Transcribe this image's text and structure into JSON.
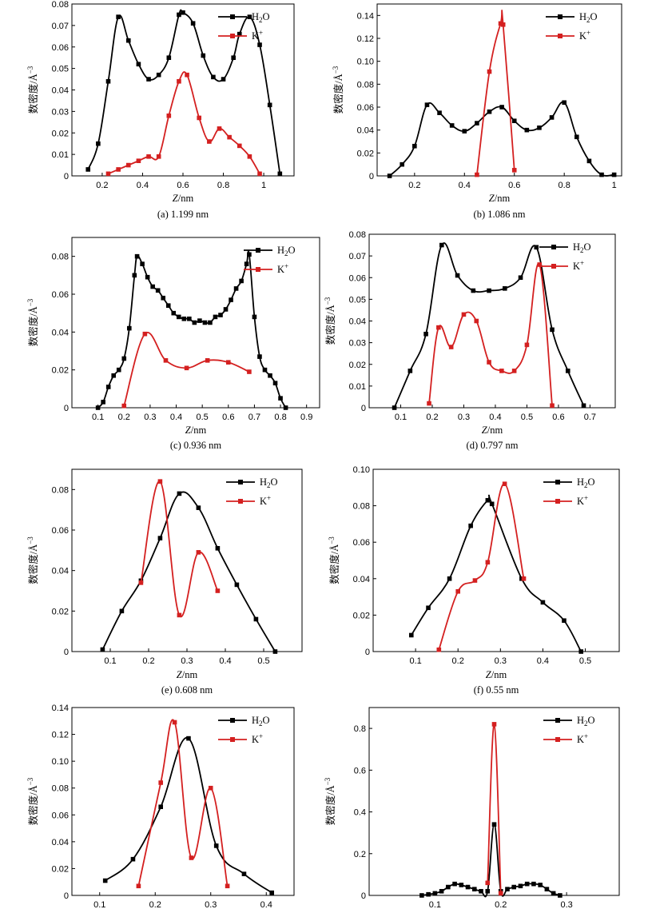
{
  "colors": {
    "h2o": "#000000",
    "k": "#d42020",
    "axis": "#000000"
  },
  "legend_labels": {
    "h2o_main": "H",
    "h2o_sub": "2",
    "h2o_end": "O",
    "k_main": "K",
    "k_sup": "+"
  },
  "ylabel": {
    "main": "数密度/Å",
    "sup": "−3"
  },
  "xlabel": {
    "italic": "Z",
    "rest": "/nm"
  },
  "chart_data": [
    {
      "id": "a",
      "type": "line",
      "caption": "(a) 1.199 nm",
      "xlim": [
        0.05,
        1.15
      ],
      "ylim": [
        0,
        0.08
      ],
      "xticks": [
        0.2,
        0.4,
        0.6,
        0.8,
        1.0
      ],
      "xtick_labels": [
        "0.2",
        "0.4",
        "0.6",
        "0.8",
        "1"
      ],
      "yticks": [
        0,
        0.01,
        0.02,
        0.03,
        0.04,
        0.05,
        0.06,
        0.07,
        0.08
      ],
      "ytick_labels": [
        "0",
        "0.01",
        "0.02",
        "0.03",
        "0.04",
        "0.05",
        "0.06",
        "0.07",
        "0.08"
      ],
      "show_xlabel": true,
      "legend_style": "line",
      "series": [
        {
          "name": "H2O",
          "x": [
            0.13,
            0.18,
            0.23,
            0.28,
            0.33,
            0.38,
            0.43,
            0.48,
            0.53,
            0.58,
            0.6,
            0.65,
            0.7,
            0.75,
            0.8,
            0.85,
            0.88,
            0.93,
            0.98,
            1.03,
            1.08
          ],
          "y": [
            0.003,
            0.015,
            0.044,
            0.074,
            0.063,
            0.052,
            0.045,
            0.047,
            0.055,
            0.075,
            0.076,
            0.071,
            0.056,
            0.046,
            0.045,
            0.055,
            0.066,
            0.074,
            0.061,
            0.033,
            0.001
          ]
        },
        {
          "name": "K+",
          "x": [
            0.23,
            0.28,
            0.33,
            0.38,
            0.43,
            0.48,
            0.53,
            0.58,
            0.62,
            0.68,
            0.73,
            0.78,
            0.83,
            0.88,
            0.93,
            0.98
          ],
          "y": [
            0.001,
            0.003,
            0.005,
            0.007,
            0.009,
            0.009,
            0.028,
            0.044,
            0.047,
            0.027,
            0.016,
            0.022,
            0.018,
            0.014,
            0.009,
            0.001
          ]
        }
      ]
    },
    {
      "id": "b",
      "type": "line",
      "caption": "(b) 1.086 nm",
      "xlim": [
        0.05,
        1.03
      ],
      "ylim": [
        0,
        0.15
      ],
      "xticks": [
        0.2,
        0.4,
        0.6,
        0.8,
        1.0
      ],
      "xtick_labels": [
        "0.2",
        "0.4",
        "0.6",
        "0.8",
        "1"
      ],
      "yticks": [
        0,
        0.02,
        0.04,
        0.06,
        0.08,
        0.1,
        0.12,
        0.14
      ],
      "ytick_labels": [
        "0",
        "0.02",
        "0.04",
        "0.06",
        "0.08",
        "0.10",
        "0.12",
        "0.14"
      ],
      "show_xlabel": true,
      "legend_style": "line",
      "series": [
        {
          "name": "H2O",
          "x": [
            0.1,
            0.15,
            0.2,
            0.25,
            0.3,
            0.35,
            0.4,
            0.45,
            0.5,
            0.55,
            0.6,
            0.65,
            0.7,
            0.75,
            0.8,
            0.85,
            0.9,
            0.95,
            1.0
          ],
          "y": [
            0.0,
            0.01,
            0.026,
            0.062,
            0.055,
            0.044,
            0.039,
            0.046,
            0.056,
            0.06,
            0.048,
            0.04,
            0.042,
            0.051,
            0.064,
            0.034,
            0.013,
            0.001,
            0.001
          ]
        },
        {
          "name": "K+",
          "x": [
            0.45,
            0.5,
            0.545,
            0.555,
            0.6
          ],
          "y": [
            0.001,
            0.091,
            0.133,
            0.132,
            0.005
          ]
        }
      ]
    },
    {
      "id": "c",
      "type": "line",
      "caption": "(c) 0.936 nm",
      "xlim": [
        0.0,
        0.95
      ],
      "ylim": [
        0,
        0.09
      ],
      "xticks": [
        0.1,
        0.2,
        0.3,
        0.4,
        0.5,
        0.6,
        0.7,
        0.8,
        0.9
      ],
      "xtick_labels": [
        "0.1",
        "0.2",
        "0.3",
        "0.4",
        "0.5",
        "0.6",
        "0.7",
        "0.8",
        "0.9"
      ],
      "yticks": [
        0,
        0.02,
        0.04,
        0.06,
        0.08
      ],
      "ytick_labels": [
        "0",
        "0.02",
        "0.04",
        "0.06",
        "0.08"
      ],
      "show_xlabel": true,
      "legend_style": "line",
      "series": [
        {
          "name": "H2O",
          "x": [
            0.1,
            0.12,
            0.14,
            0.16,
            0.18,
            0.2,
            0.22,
            0.24,
            0.25,
            0.27,
            0.29,
            0.31,
            0.33,
            0.35,
            0.37,
            0.39,
            0.41,
            0.43,
            0.45,
            0.47,
            0.49,
            0.51,
            0.53,
            0.55,
            0.57,
            0.59,
            0.61,
            0.63,
            0.65,
            0.67,
            0.68,
            0.7,
            0.72,
            0.74,
            0.76,
            0.78,
            0.8,
            0.82
          ],
          "y": [
            0.0,
            0.003,
            0.011,
            0.017,
            0.02,
            0.026,
            0.042,
            0.07,
            0.08,
            0.076,
            0.069,
            0.064,
            0.062,
            0.058,
            0.054,
            0.05,
            0.048,
            0.047,
            0.047,
            0.045,
            0.046,
            0.045,
            0.045,
            0.048,
            0.049,
            0.052,
            0.057,
            0.063,
            0.067,
            0.076,
            0.081,
            0.048,
            0.027,
            0.02,
            0.017,
            0.013,
            0.005,
            0.0
          ]
        },
        {
          "name": "K+",
          "x": [
            0.2,
            0.28,
            0.36,
            0.44,
            0.52,
            0.6,
            0.68
          ],
          "y": [
            0.001,
            0.039,
            0.025,
            0.021,
            0.025,
            0.024,
            0.019
          ]
        }
      ]
    },
    {
      "id": "d",
      "type": "line",
      "caption": "(d) 0.797 nm",
      "xlim": [
        0.0,
        0.78
      ],
      "ylim": [
        0,
        0.08
      ],
      "xticks": [
        0.1,
        0.2,
        0.3,
        0.4,
        0.5,
        0.6,
        0.7
      ],
      "xtick_labels": [
        "0.1",
        "0.2",
        "0.3",
        "0.4",
        "0.5",
        "0.6",
        "0.7"
      ],
      "yticks": [
        0,
        0.01,
        0.02,
        0.03,
        0.04,
        0.05,
        0.06,
        0.07,
        0.08
      ],
      "ytick_labels": [
        "0",
        "0.01",
        "0.02",
        "0.03",
        "0.04",
        "0.05",
        "0.06",
        "0.07",
        "0.08"
      ],
      "show_xlabel": true,
      "legend_style": "line",
      "series": [
        {
          "name": "H2O",
          "x": [
            0.08,
            0.13,
            0.18,
            0.23,
            0.28,
            0.33,
            0.38,
            0.43,
            0.48,
            0.53,
            0.58,
            0.63,
            0.68
          ],
          "y": [
            0.0,
            0.017,
            0.034,
            0.075,
            0.061,
            0.054,
            0.054,
            0.055,
            0.06,
            0.074,
            0.036,
            0.017,
            0.001
          ]
        },
        {
          "name": "K+",
          "x": [
            0.19,
            0.22,
            0.26,
            0.3,
            0.34,
            0.38,
            0.42,
            0.46,
            0.5,
            0.54,
            0.58
          ],
          "y": [
            0.002,
            0.037,
            0.028,
            0.043,
            0.04,
            0.021,
            0.017,
            0.017,
            0.029,
            0.066,
            0.001
          ]
        }
      ]
    },
    {
      "id": "e",
      "type": "line",
      "caption": "(e) 0.608 nm",
      "xlim": [
        0.0,
        0.6
      ],
      "ylim": [
        0,
        0.09
      ],
      "xticks": [
        0.1,
        0.2,
        0.3,
        0.4,
        0.5
      ],
      "xtick_labels": [
        "0.1",
        "0.2",
        "0.3",
        "0.4",
        "0.5"
      ],
      "yticks": [
        0,
        0.02,
        0.04,
        0.06,
        0.08
      ],
      "ytick_labels": [
        "0",
        "0.02",
        "0.04",
        "0.06",
        "0.08"
      ],
      "show_xlabel": true,
      "legend_style": "line",
      "series": [
        {
          "name": "H2O",
          "x": [
            0.08,
            0.13,
            0.18,
            0.23,
            0.28,
            0.33,
            0.38,
            0.43,
            0.48,
            0.53
          ],
          "y": [
            0.001,
            0.02,
            0.035,
            0.056,
            0.078,
            0.071,
            0.051,
            0.033,
            0.016,
            0.0
          ]
        },
        {
          "name": "K+",
          "x": [
            0.18,
            0.23,
            0.28,
            0.33,
            0.38
          ],
          "y": [
            0.034,
            0.084,
            0.018,
            0.049,
            0.03
          ]
        }
      ]
    },
    {
      "id": "f",
      "type": "line",
      "caption": "(f)  0.55 nm",
      "xlim": [
        0.0,
        0.58
      ],
      "ylim": [
        0,
        0.1
      ],
      "xticks": [
        0.1,
        0.2,
        0.3,
        0.4,
        0.5
      ],
      "xtick_labels": [
        "0.1",
        "0.2",
        "0.3",
        "0.4",
        "0.5"
      ],
      "yticks": [
        0,
        0.02,
        0.04,
        0.06,
        0.08,
        0.1
      ],
      "ytick_labels": [
        "0",
        "0.02",
        "0.04",
        "0.06",
        "0.08",
        "0.10"
      ],
      "show_xlabel": true,
      "legend_style": "line",
      "series": [
        {
          "name": "H2O",
          "x": [
            0.09,
            0.13,
            0.18,
            0.23,
            0.27,
            0.28,
            0.35,
            0.4,
            0.45,
            0.49
          ],
          "y": [
            0.009,
            0.024,
            0.04,
            0.069,
            0.083,
            0.081,
            0.04,
            0.027,
            0.017,
            0.0
          ]
        },
        {
          "name": "K+",
          "x": [
            0.155,
            0.2,
            0.24,
            0.27,
            0.31,
            0.355
          ],
          "y": [
            0.001,
            0.033,
            0.039,
            0.049,
            0.092,
            0.04
          ]
        }
      ]
    },
    {
      "id": "g",
      "type": "line",
      "caption": "",
      "xlim": [
        0.05,
        0.45
      ],
      "ylim": [
        0,
        0.14
      ],
      "xticks": [
        0.1,
        0.2,
        0.3,
        0.4
      ],
      "xtick_labels": [
        "0.1",
        "0.2",
        "0.3",
        "0.4"
      ],
      "yticks": [
        0,
        0.02,
        0.04,
        0.06,
        0.08,
        0.1,
        0.12,
        0.14
      ],
      "ytick_labels": [
        "0",
        "0.02",
        "0.04",
        "0.06",
        "0.08",
        "0.10",
        "0.12",
        "0.14"
      ],
      "show_xlabel": false,
      "legend_style": "line",
      "series": [
        {
          "name": "H2O",
          "x": [
            0.11,
            0.16,
            0.21,
            0.26,
            0.31,
            0.36,
            0.41
          ],
          "y": [
            0.011,
            0.027,
            0.066,
            0.117,
            0.037,
            0.016,
            0.002
          ]
        },
        {
          "name": "K+",
          "x": [
            0.17,
            0.21,
            0.235,
            0.265,
            0.3,
            0.33
          ],
          "y": [
            0.007,
            0.084,
            0.129,
            0.028,
            0.08,
            0.007
          ]
        }
      ]
    },
    {
      "id": "h",
      "type": "line",
      "caption": "",
      "xlim": [
        0.0,
        0.38
      ],
      "ylim": [
        0,
        0.9
      ],
      "xticks": [
        0.1,
        0.2,
        0.3
      ],
      "xtick_labels": [
        "0.1",
        "0.2",
        "0.3"
      ],
      "yticks": [
        0,
        0.2,
        0.4,
        0.6,
        0.8
      ],
      "ytick_labels": [
        "0",
        "0.2",
        "0.4",
        "0.6",
        "0.8"
      ],
      "show_xlabel": false,
      "legend_style": "line",
      "series": [
        {
          "name": "H2O",
          "x": [
            0.08,
            0.09,
            0.1,
            0.11,
            0.12,
            0.13,
            0.14,
            0.15,
            0.16,
            0.17,
            0.18,
            0.19,
            0.2,
            0.21,
            0.22,
            0.23,
            0.24,
            0.25,
            0.26,
            0.27,
            0.28,
            0.29
          ],
          "y": [
            0.0,
            0.005,
            0.01,
            0.02,
            0.04,
            0.055,
            0.05,
            0.04,
            0.03,
            0.02,
            0.02,
            0.34,
            0.02,
            0.03,
            0.04,
            0.045,
            0.055,
            0.055,
            0.05,
            0.03,
            0.01,
            0.0
          ]
        },
        {
          "name": "K+",
          "x": [
            0.18,
            0.19,
            0.2
          ],
          "y": [
            0.06,
            0.82,
            0.01
          ]
        }
      ]
    }
  ]
}
